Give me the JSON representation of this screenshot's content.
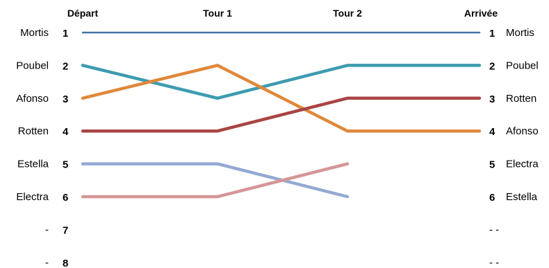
{
  "chart_data": {
    "type": "line",
    "stages": [
      "Départ",
      "Tour 1",
      "Tour 2",
      "Arrivée"
    ],
    "ranks": [
      "1",
      "2",
      "3",
      "4",
      "5",
      "6",
      "7",
      "8"
    ],
    "left_names": [
      "Mortis",
      "Poubel",
      "Afonso",
      "Rotten",
      "Estella",
      "Electra",
      "-",
      "-"
    ],
    "right_names": [
      "Mortis",
      "Poubel",
      "Rotten",
      "Afonso",
      "Electra",
      "Estella",
      "- -",
      "- -"
    ],
    "series": [
      {
        "name": "Mortis",
        "color": "#4472a4",
        "positions": [
          1,
          1,
          1,
          1
        ]
      },
      {
        "name": "Poubel",
        "color": "#3d9bb0",
        "positions": [
          2,
          3,
          2,
          2
        ]
      },
      {
        "name": "Afonso",
        "color": "#e0883a",
        "positions": [
          3,
          2,
          4,
          4
        ]
      },
      {
        "name": "Rotten",
        "color": "#aa4444",
        "positions": [
          4,
          4,
          3,
          3
        ]
      },
      {
        "name": "Estella",
        "color": "#93a9d2",
        "positions": [
          5,
          5,
          6,
          null
        ]
      },
      {
        "name": "Electra",
        "color": "#d59595",
        "positions": [
          6,
          6,
          5,
          null
        ]
      }
    ]
  }
}
